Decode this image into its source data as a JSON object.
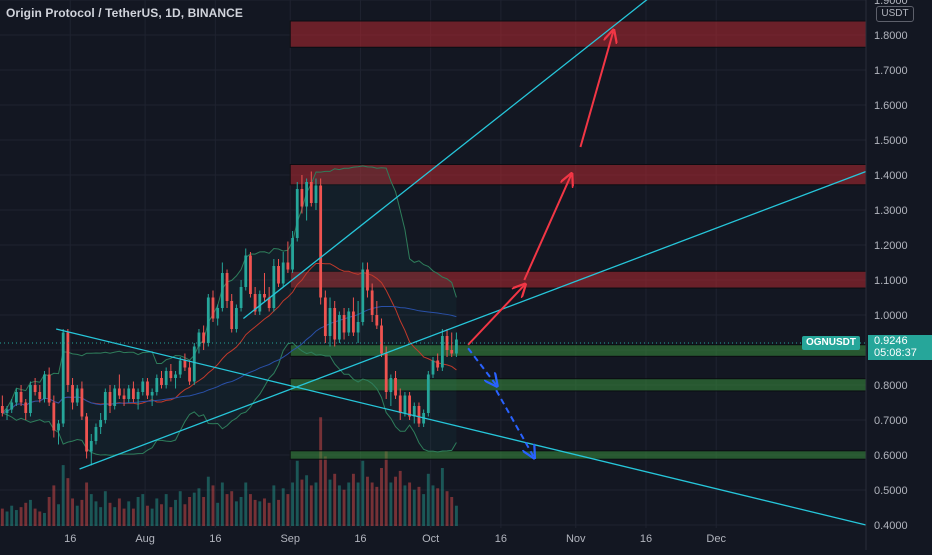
{
  "header": {
    "title": "Origin Protocol / TetherUS, 1D, BINANCE",
    "currency": "USDT"
  },
  "last_price": {
    "symbol": "OGNUSDT",
    "price": "0.9246",
    "countdown": "05:08:37"
  },
  "colors": {
    "background": "#131722",
    "up_candle": "#26a69a",
    "down_candle": "#ef5350",
    "trendline": "#26c6da",
    "resistance_zone": "#8b2f33",
    "support_zone": "#2e6b3b",
    "arrow_up": "#f23645",
    "arrow_down": "#2962ff"
  },
  "chart_data": {
    "type": "candlestick",
    "title": "Origin Protocol / TetherUS, 1D, BINANCE",
    "y_unit": "USDT",
    "ylim": [
      0.4,
      1.9
    ],
    "y_ticks": [
      "1.9000",
      "1.8000",
      "1.7000",
      "1.6000",
      "1.5000",
      "1.4000",
      "1.3000",
      "1.2000",
      "1.1000",
      "1.0000",
      "0.9000",
      "0.8000",
      "0.7000",
      "0.6000",
      "0.5000",
      "0.4000"
    ],
    "x_ticks": [
      "16",
      "Aug",
      "16",
      "Sep",
      "16",
      "Oct",
      "16",
      "Nov",
      "16",
      "Dec"
    ],
    "x_range_days": [
      0,
      185
    ],
    "x_tick_days": [
      15,
      31,
      46,
      62,
      77,
      92,
      107,
      123,
      138,
      153
    ],
    "candles": [
      [
        0.74,
        0.77,
        0.71,
        0.72
      ],
      [
        0.72,
        0.74,
        0.7,
        0.73
      ],
      [
        0.73,
        0.76,
        0.72,
        0.75
      ],
      [
        0.75,
        0.79,
        0.74,
        0.78
      ],
      [
        0.78,
        0.8,
        0.74,
        0.75
      ],
      [
        0.75,
        0.76,
        0.7,
        0.72
      ],
      [
        0.72,
        0.81,
        0.71,
        0.8
      ],
      [
        0.8,
        0.82,
        0.77,
        0.78
      ],
      [
        0.78,
        0.8,
        0.75,
        0.76
      ],
      [
        0.76,
        0.84,
        0.75,
        0.83
      ],
      [
        0.83,
        0.85,
        0.74,
        0.75
      ],
      [
        0.75,
        0.77,
        0.65,
        0.67
      ],
      [
        0.67,
        0.7,
        0.63,
        0.69
      ],
      [
        0.69,
        0.96,
        0.68,
        0.95
      ],
      [
        0.95,
        0.96,
        0.78,
        0.8
      ],
      [
        0.8,
        0.82,
        0.73,
        0.75
      ],
      [
        0.75,
        0.8,
        0.74,
        0.79
      ],
      [
        0.79,
        0.81,
        0.7,
        0.71
      ],
      [
        0.71,
        0.72,
        0.59,
        0.61
      ],
      [
        0.61,
        0.66,
        0.57,
        0.64
      ],
      [
        0.64,
        0.69,
        0.63,
        0.68
      ],
      [
        0.68,
        0.72,
        0.66,
        0.7
      ],
      [
        0.7,
        0.79,
        0.69,
        0.78
      ],
      [
        0.78,
        0.8,
        0.72,
        0.74
      ],
      [
        0.74,
        0.8,
        0.73,
        0.79
      ],
      [
        0.79,
        0.83,
        0.76,
        0.77
      ],
      [
        0.77,
        0.79,
        0.74,
        0.76
      ],
      [
        0.76,
        0.8,
        0.75,
        0.79
      ],
      [
        0.79,
        0.81,
        0.75,
        0.76
      ],
      [
        0.76,
        0.79,
        0.73,
        0.78
      ],
      [
        0.78,
        0.82,
        0.77,
        0.81
      ],
      [
        0.81,
        0.82,
        0.76,
        0.77
      ],
      [
        0.77,
        0.79,
        0.74,
        0.78
      ],
      [
        0.78,
        0.83,
        0.77,
        0.82
      ],
      [
        0.82,
        0.84,
        0.79,
        0.8
      ],
      [
        0.8,
        0.85,
        0.79,
        0.84
      ],
      [
        0.84,
        0.86,
        0.81,
        0.82
      ],
      [
        0.82,
        0.84,
        0.79,
        0.83
      ],
      [
        0.83,
        0.88,
        0.82,
        0.87
      ],
      [
        0.87,
        0.89,
        0.84,
        0.85
      ],
      [
        0.85,
        0.87,
        0.8,
        0.81
      ],
      [
        0.81,
        0.92,
        0.8,
        0.91
      ],
      [
        0.91,
        0.96,
        0.89,
        0.95
      ],
      [
        0.95,
        0.97,
        0.9,
        0.92
      ],
      [
        0.92,
        1.06,
        0.91,
        1.05
      ],
      [
        1.05,
        1.07,
        0.98,
        0.99
      ],
      [
        0.99,
        1.03,
        0.97,
        1.02
      ],
      [
        1.02,
        1.15,
        1.01,
        1.12
      ],
      [
        1.12,
        1.13,
        1.02,
        1.04
      ],
      [
        1.04,
        1.06,
        0.95,
        0.96
      ],
      [
        0.96,
        1.03,
        0.95,
        1.02
      ],
      [
        1.02,
        1.1,
        1.01,
        1.08
      ],
      [
        1.08,
        1.19,
        1.07,
        1.17
      ],
      [
        1.17,
        1.18,
        1.05,
        1.06
      ],
      [
        1.06,
        1.08,
        1.0,
        1.01
      ],
      [
        1.01,
        1.07,
        1.0,
        1.06
      ],
      [
        1.06,
        1.12,
        1.04,
        1.05
      ],
      [
        1.05,
        1.08,
        1.01,
        1.02
      ],
      [
        1.02,
        1.16,
        1.01,
        1.14
      ],
      [
        1.14,
        1.16,
        1.08,
        1.09
      ],
      [
        1.09,
        1.18,
        1.08,
        1.15
      ],
      [
        1.15,
        1.21,
        1.12,
        1.13
      ],
      [
        1.13,
        1.24,
        1.12,
        1.22
      ],
      [
        1.22,
        1.38,
        1.21,
        1.36
      ],
      [
        1.36,
        1.4,
        1.29,
        1.31
      ],
      [
        1.31,
        1.39,
        1.27,
        1.38
      ],
      [
        1.38,
        1.41,
        1.31,
        1.32
      ],
      [
        1.32,
        1.39,
        1.3,
        1.37
      ],
      [
        1.37,
        1.39,
        1.03,
        1.05
      ],
      [
        1.05,
        1.07,
        0.92,
        0.94
      ],
      [
        0.94,
        1.05,
        0.91,
        1.02
      ],
      [
        1.02,
        1.04,
        0.91,
        0.93
      ],
      [
        0.93,
        1.01,
        0.92,
        1.0
      ],
      [
        1.0,
        1.02,
        0.93,
        0.95
      ],
      [
        0.95,
        1.02,
        0.94,
        1.01
      ],
      [
        1.01,
        1.05,
        0.94,
        0.95
      ],
      [
        0.95,
        1.04,
        0.92,
        0.98
      ],
      [
        0.98,
        1.15,
        0.97,
        1.13
      ],
      [
        1.13,
        1.15,
        1.05,
        1.07
      ],
      [
        1.07,
        1.09,
        0.98,
        1.0
      ],
      [
        1.0,
        1.04,
        0.96,
        0.97
      ],
      [
        0.97,
        0.99,
        0.88,
        0.89
      ],
      [
        0.89,
        0.91,
        0.76,
        0.78
      ],
      [
        0.78,
        0.83,
        0.74,
        0.82
      ],
      [
        0.82,
        0.84,
        0.76,
        0.77
      ],
      [
        0.77,
        0.79,
        0.7,
        0.72
      ],
      [
        0.72,
        0.78,
        0.71,
        0.77
      ],
      [
        0.77,
        0.78,
        0.7,
        0.71
      ],
      [
        0.71,
        0.75,
        0.69,
        0.74
      ],
      [
        0.74,
        0.75,
        0.68,
        0.69
      ],
      [
        0.69,
        0.73,
        0.68,
        0.72
      ],
      [
        0.72,
        0.84,
        0.71,
        0.83
      ],
      [
        0.83,
        0.88,
        0.82,
        0.87
      ],
      [
        0.87,
        0.89,
        0.84,
        0.85
      ],
      [
        0.85,
        0.96,
        0.84,
        0.94
      ],
      [
        0.94,
        0.96,
        0.88,
        0.9
      ],
      [
        0.9,
        0.95,
        0.88,
        0.89
      ],
      [
        0.89,
        0.95,
        0.88,
        0.93
      ]
    ],
    "volume": [
      0.12,
      0.1,
      0.14,
      0.11,
      0.13,
      0.16,
      0.18,
      0.12,
      0.1,
      0.09,
      0.2,
      0.28,
      0.15,
      0.42,
      0.33,
      0.19,
      0.14,
      0.18,
      0.3,
      0.22,
      0.17,
      0.13,
      0.24,
      0.16,
      0.13,
      0.19,
      0.12,
      0.17,
      0.12,
      0.2,
      0.22,
      0.14,
      0.12,
      0.19,
      0.15,
      0.22,
      0.13,
      0.18,
      0.24,
      0.15,
      0.2,
      0.23,
      0.26,
      0.2,
      0.34,
      0.28,
      0.16,
      0.3,
      0.22,
      0.24,
      0.17,
      0.2,
      0.3,
      0.22,
      0.18,
      0.17,
      0.19,
      0.16,
      0.28,
      0.18,
      0.26,
      0.22,
      0.3,
      0.45,
      0.32,
      0.35,
      0.28,
      0.3,
      0.75,
      0.48,
      0.32,
      0.36,
      0.28,
      0.25,
      0.3,
      0.36,
      0.3,
      0.45,
      0.34,
      0.3,
      0.27,
      0.4,
      0.52,
      0.3,
      0.34,
      0.38,
      0.28,
      0.3,
      0.25,
      0.27,
      0.22,
      0.36,
      0.28,
      0.26,
      0.4,
      0.24,
      0.2,
      0.14
    ],
    "zones": [
      {
        "kind": "resistance",
        "from_day": 62,
        "y1": 1.84,
        "y2": 1.765
      },
      {
        "kind": "resistance",
        "from_day": 62,
        "y1": 1.43,
        "y2": 1.372
      },
      {
        "kind": "resistance",
        "from_day": 62,
        "y1": 1.125,
        "y2": 1.077
      },
      {
        "kind": "support",
        "from_day": 62,
        "y1": 0.915,
        "y2": 0.882
      },
      {
        "kind": "support",
        "from_day": 62,
        "y1": 0.818,
        "y2": 0.783
      },
      {
        "kind": "support",
        "from_day": 62,
        "y1": 0.612,
        "y2": 0.588
      }
    ],
    "trendlines": [
      {
        "from": [
          12,
          0.96
        ],
        "to": [
          185,
          0.4
        ]
      },
      {
        "from": [
          17,
          0.56
        ],
        "to": [
          185,
          1.41
        ]
      },
      {
        "from": [
          52,
          0.99
        ],
        "to": [
          140,
          1.92
        ]
      }
    ],
    "arrows": [
      {
        "dir": "up",
        "from": [
          100,
          0.915
        ],
        "to": [
          112,
          1.085
        ]
      },
      {
        "dir": "up",
        "from": [
          112,
          1.1
        ],
        "to": [
          122,
          1.4
        ]
      },
      {
        "dir": "up",
        "from": [
          124,
          1.48
        ],
        "to": [
          131,
          1.81
        ]
      },
      {
        "dir": "down",
        "from": [
          100,
          0.905
        ],
        "to": [
          106,
          0.8
        ]
      },
      {
        "dir": "down",
        "from": [
          106,
          0.785
        ],
        "to": [
          114,
          0.595
        ]
      }
    ]
  }
}
